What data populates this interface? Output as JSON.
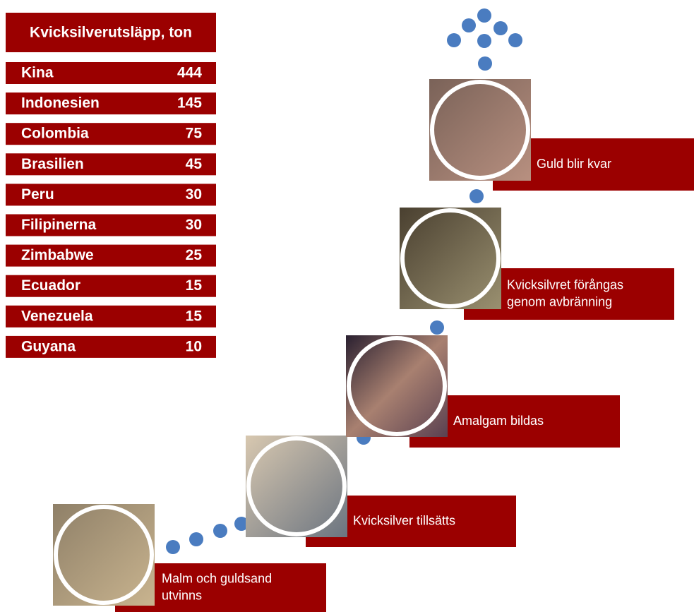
{
  "table": {
    "title": "Kvicksilverutsläpp, ton",
    "rows": [
      [
        "Kina",
        444
      ],
      [
        "Indonesien",
        145
      ],
      [
        "Colombia",
        75
      ],
      [
        "Brasilien",
        45
      ],
      [
        "Peru",
        30
      ],
      [
        "Filipinerna",
        30
      ],
      [
        "Zimbabwe",
        25
      ],
      [
        "Ecuador",
        15
      ],
      [
        "Venezuela",
        15
      ],
      [
        "Guyana",
        10
      ]
    ]
  },
  "steps": [
    {
      "label": [
        "Malm och guldsand",
        "utvinns"
      ]
    },
    {
      "label": [
        "Kvicksilver  tillsätts"
      ]
    },
    {
      "label": [
        "Amalgam bildas"
      ]
    },
    {
      "label": [
        "Kvicksilvret förångas",
        "genom avbränning"
      ]
    },
    {
      "label": [
        "Guld blir kvar"
      ]
    }
  ]
}
